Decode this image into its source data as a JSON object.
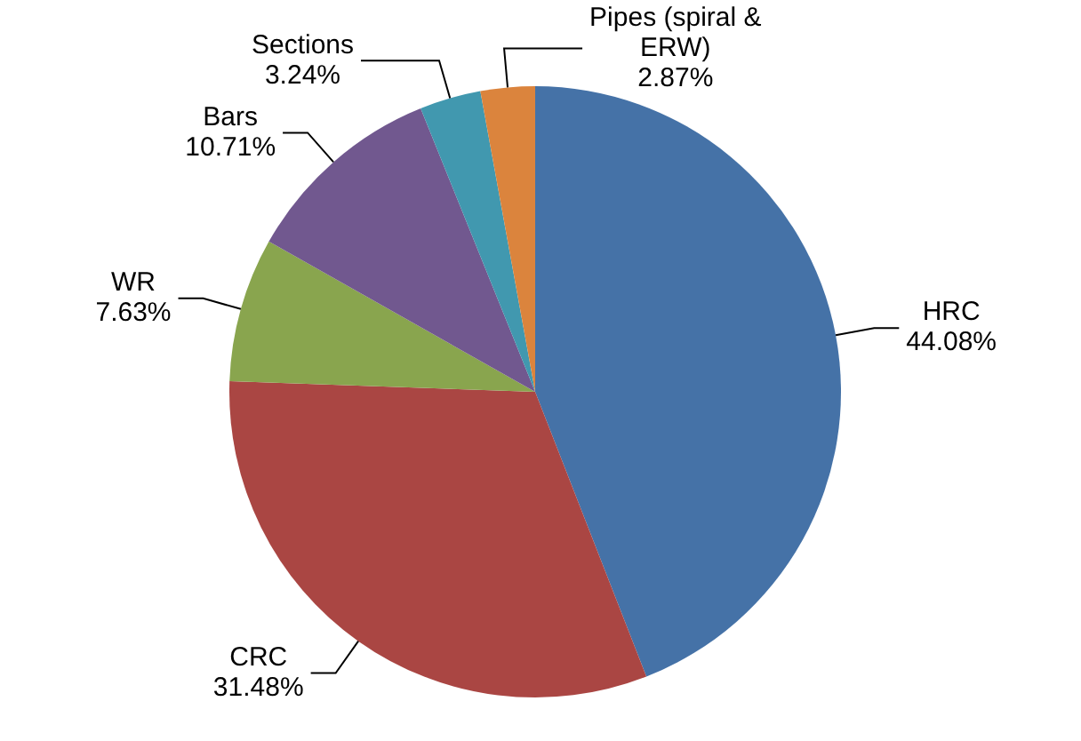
{
  "chart_data": {
    "type": "pie",
    "categories": [
      "HRC",
      "CRC",
      "WR",
      "Bars",
      "Sections",
      "Pipes (spiral & ERW)"
    ],
    "values": [
      44.08,
      31.48,
      7.63,
      10.71,
      3.24,
      2.87
    ],
    "value_labels": [
      "44.08%",
      "31.48%",
      "7.63%",
      "10.71%",
      "3.24%",
      "2.87%"
    ],
    "colors": [
      "#4572a7",
      "#aa4643",
      "#89a54e",
      "#71588f",
      "#4198af",
      "#db843d"
    ],
    "legend": false
  }
}
